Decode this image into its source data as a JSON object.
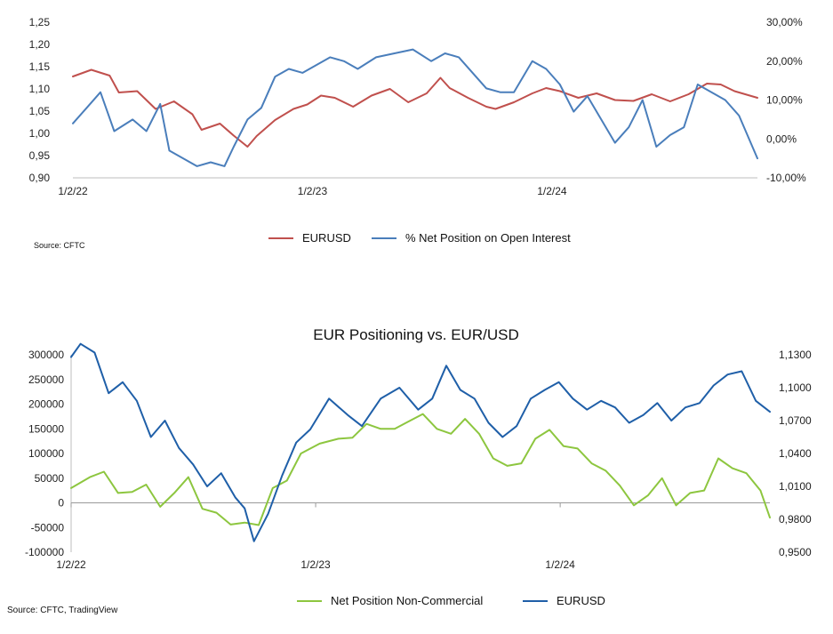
{
  "charts": [
    {
      "id": "top",
      "source": "Source: CFTC",
      "chart_data": {
        "type": "line",
        "title": "",
        "x_tick_labels": [
          "1/2/22",
          "1/2/23",
          "1/2/24"
        ],
        "x_range": [
          "2022-01-02",
          "2024-11-10"
        ],
        "y_left": {
          "range": [
            0.9,
            1.25
          ],
          "ticks": [
            "0,90",
            "0,95",
            "1,00",
            "1,05",
            "1,10",
            "1,15",
            "1,20",
            "1,25"
          ]
        },
        "y_right": {
          "range": [
            -10,
            30
          ],
          "ticks": [
            "-10,00%",
            "0,00%",
            "10,00%",
            "20,00%",
            "30,00%"
          ]
        },
        "legend_position": "bottom",
        "grid": false,
        "series": [
          {
            "name": "EURUSD",
            "axis": "left",
            "color": "#c0504d",
            "points": [
              [
                "2022-01-02",
                1.128
              ],
              [
                "2022-01-30",
                1.143
              ],
              [
                "2022-02-27",
                1.13
              ],
              [
                "2022-03-13",
                1.092
              ],
              [
                "2022-04-10",
                1.095
              ],
              [
                "2022-05-08",
                1.055
              ],
              [
                "2022-06-05",
                1.072
              ],
              [
                "2022-07-03",
                1.043
              ],
              [
                "2022-07-17",
                1.008
              ],
              [
                "2022-08-14",
                1.022
              ],
              [
                "2022-09-04",
                0.995
              ],
              [
                "2022-09-25",
                0.97
              ],
              [
                "2022-10-09",
                0.994
              ],
              [
                "2022-11-06",
                1.03
              ],
              [
                "2022-12-04",
                1.055
              ],
              [
                "2022-12-25",
                1.065
              ],
              [
                "2023-01-15",
                1.085
              ],
              [
                "2023-02-05",
                1.08
              ],
              [
                "2023-03-05",
                1.06
              ],
              [
                "2023-04-02",
                1.085
              ],
              [
                "2023-04-30",
                1.1
              ],
              [
                "2023-05-28",
                1.07
              ],
              [
                "2023-06-25",
                1.09
              ],
              [
                "2023-07-16",
                1.125
              ],
              [
                "2023-07-30",
                1.102
              ],
              [
                "2023-08-27",
                1.08
              ],
              [
                "2023-09-24",
                1.06
              ],
              [
                "2023-10-08",
                1.055
              ],
              [
                "2023-11-05",
                1.07
              ],
              [
                "2023-12-03",
                1.09
              ],
              [
                "2023-12-24",
                1.102
              ],
              [
                "2024-01-14",
                1.095
              ],
              [
                "2024-02-11",
                1.08
              ],
              [
                "2024-03-10",
                1.09
              ],
              [
                "2024-04-07",
                1.075
              ],
              [
                "2024-05-05",
                1.073
              ],
              [
                "2024-06-02",
                1.088
              ],
              [
                "2024-06-30",
                1.072
              ],
              [
                "2024-07-28",
                1.088
              ],
              [
                "2024-08-25",
                1.112
              ],
              [
                "2024-09-15",
                1.11
              ],
              [
                "2024-10-06",
                1.095
              ],
              [
                "2024-11-10",
                1.08
              ]
            ]
          },
          {
            "name": "% Net Position on Open Interest",
            "axis": "right",
            "color": "#4a7ebb",
            "points": [
              [
                "2022-01-02",
                4
              ],
              [
                "2022-01-23",
                8
              ],
              [
                "2022-02-13",
                12
              ],
              [
                "2022-03-06",
                2
              ],
              [
                "2022-04-03",
                5
              ],
              [
                "2022-04-24",
                2
              ],
              [
                "2022-05-15",
                9
              ],
              [
                "2022-05-29",
                -3
              ],
              [
                "2022-06-19",
                -5
              ],
              [
                "2022-07-10",
                -7
              ],
              [
                "2022-07-31",
                -6
              ],
              [
                "2022-08-21",
                -7
              ],
              [
                "2022-09-04",
                -2
              ],
              [
                "2022-09-25",
                5
              ],
              [
                "2022-10-16",
                8
              ],
              [
                "2022-11-06",
                16
              ],
              [
                "2022-11-27",
                18
              ],
              [
                "2022-12-18",
                17
              ],
              [
                "2023-01-08",
                19
              ],
              [
                "2023-01-29",
                21
              ],
              [
                "2023-02-19",
                20
              ],
              [
                "2023-03-12",
                18
              ],
              [
                "2023-04-09",
                21
              ],
              [
                "2023-05-07",
                22
              ],
              [
                "2023-06-04",
                23
              ],
              [
                "2023-07-02",
                20
              ],
              [
                "2023-07-23",
                22
              ],
              [
                "2023-08-13",
                21
              ],
              [
                "2023-09-03",
                17
              ],
              [
                "2023-09-24",
                13
              ],
              [
                "2023-10-15",
                12
              ],
              [
                "2023-11-05",
                12
              ],
              [
                "2023-12-03",
                20
              ],
              [
                "2023-12-24",
                18
              ],
              [
                "2024-01-14",
                14
              ],
              [
                "2024-02-04",
                7
              ],
              [
                "2024-02-25",
                11
              ],
              [
                "2024-03-17",
                5
              ],
              [
                "2024-04-07",
                -1
              ],
              [
                "2024-04-28",
                3
              ],
              [
                "2024-05-19",
                10
              ],
              [
                "2024-06-09",
                -2
              ],
              [
                "2024-06-30",
                1
              ],
              [
                "2024-07-21",
                3
              ],
              [
                "2024-08-11",
                14
              ],
              [
                "2024-09-01",
                12
              ],
              [
                "2024-09-22",
                10
              ],
              [
                "2024-10-13",
                6
              ],
              [
                "2024-11-10",
                -5
              ]
            ]
          }
        ]
      }
    },
    {
      "id": "bottom",
      "source": "Source: CFTC, TradingView",
      "chart_data": {
        "type": "line",
        "title": "EUR Positioning vs. EUR/USD",
        "x_tick_labels": [
          "1/2/22",
          "1/2/23",
          "1/2/24"
        ],
        "x_range": [
          "2022-01-02",
          "2024-11-10"
        ],
        "y_left": {
          "range": [
            -100000,
            300000
          ],
          "ticks": [
            "-100000",
            "-50000",
            "0",
            "50000",
            "100000",
            "150000",
            "200000",
            "250000",
            "300000"
          ]
        },
        "y_right": {
          "range": [
            0.95,
            1.13
          ],
          "ticks": [
            "0,9500",
            "0,9800",
            "1,0100",
            "1,0400",
            "1,0700",
            "1,1000",
            "1,1300"
          ]
        },
        "legend_position": "bottom",
        "grid": false,
        "series": [
          {
            "name": "Net Position Non-Commercial",
            "axis": "left",
            "color": "#8dc63f",
            "points": [
              [
                "2022-01-02",
                30000
              ],
              [
                "2022-01-30",
                52000
              ],
              [
                "2022-02-20",
                63000
              ],
              [
                "2022-03-13",
                20000
              ],
              [
                "2022-04-03",
                22000
              ],
              [
                "2022-04-24",
                37000
              ],
              [
                "2022-05-15",
                -8000
              ],
              [
                "2022-06-05",
                20000
              ],
              [
                "2022-06-26",
                52000
              ],
              [
                "2022-07-17",
                -12000
              ],
              [
                "2022-08-07",
                -20000
              ],
              [
                "2022-08-28",
                -44000
              ],
              [
                "2022-09-18",
                -40000
              ],
              [
                "2022-10-09",
                -45000
              ],
              [
                "2022-10-30",
                30000
              ],
              [
                "2022-11-20",
                45000
              ],
              [
                "2022-12-11",
                100000
              ],
              [
                "2023-01-08",
                120000
              ],
              [
                "2023-02-05",
                130000
              ],
              [
                "2023-02-26",
                132000
              ],
              [
                "2023-03-19",
                160000
              ],
              [
                "2023-04-09",
                150000
              ],
              [
                "2023-04-30",
                150000
              ],
              [
                "2023-05-21",
                165000
              ],
              [
                "2023-06-11",
                180000
              ],
              [
                "2023-07-02",
                150000
              ],
              [
                "2023-07-23",
                140000
              ],
              [
                "2023-08-13",
                170000
              ],
              [
                "2023-09-03",
                140000
              ],
              [
                "2023-09-24",
                90000
              ],
              [
                "2023-10-15",
                75000
              ],
              [
                "2023-11-05",
                80000
              ],
              [
                "2023-11-26",
                130000
              ],
              [
                "2023-12-17",
                148000
              ],
              [
                "2024-01-07",
                115000
              ],
              [
                "2024-01-28",
                110000
              ],
              [
                "2024-02-18",
                80000
              ],
              [
                "2024-03-10",
                65000
              ],
              [
                "2024-03-31",
                35000
              ],
              [
                "2024-04-21",
                -5000
              ],
              [
                "2024-05-12",
                15000
              ],
              [
                "2024-06-02",
                50000
              ],
              [
                "2024-06-23",
                -5000
              ],
              [
                "2024-07-14",
                20000
              ],
              [
                "2024-08-04",
                25000
              ],
              [
                "2024-08-25",
                90000
              ],
              [
                "2024-09-15",
                70000
              ],
              [
                "2024-10-06",
                60000
              ],
              [
                "2024-10-27",
                25000
              ],
              [
                "2024-11-10",
                -30000
              ]
            ]
          },
          {
            "name": "EURUSD",
            "axis": "right",
            "color": "#1f5fa8",
            "points": [
              [
                "2022-01-02",
                1.128
              ],
              [
                "2022-01-16",
                1.14
              ],
              [
                "2022-02-06",
                1.132
              ],
              [
                "2022-02-27",
                1.095
              ],
              [
                "2022-03-20",
                1.105
              ],
              [
                "2022-04-10",
                1.088
              ],
              [
                "2022-05-01",
                1.055
              ],
              [
                "2022-05-22",
                1.07
              ],
              [
                "2022-06-12",
                1.045
              ],
              [
                "2022-07-03",
                1.03
              ],
              [
                "2022-07-24",
                1.01
              ],
              [
                "2022-08-14",
                1.022
              ],
              [
                "2022-09-04",
                1.0
              ],
              [
                "2022-09-18",
                0.99
              ],
              [
                "2022-10-02",
                0.96
              ],
              [
                "2022-10-23",
                0.985
              ],
              [
                "2022-11-13",
                1.02
              ],
              [
                "2022-12-04",
                1.05
              ],
              [
                "2022-12-25",
                1.062
              ],
              [
                "2023-01-22",
                1.09
              ],
              [
                "2023-02-19",
                1.075
              ],
              [
                "2023-03-12",
                1.065
              ],
              [
                "2023-04-09",
                1.09
              ],
              [
                "2023-05-07",
                1.1
              ],
              [
                "2023-06-04",
                1.08
              ],
              [
                "2023-06-25",
                1.09
              ],
              [
                "2023-07-16",
                1.12
              ],
              [
                "2023-08-06",
                1.098
              ],
              [
                "2023-08-27",
                1.09
              ],
              [
                "2023-09-17",
                1.068
              ],
              [
                "2023-10-08",
                1.055
              ],
              [
                "2023-10-29",
                1.065
              ],
              [
                "2023-11-19",
                1.09
              ],
              [
                "2023-12-10",
                1.098
              ],
              [
                "2023-12-31",
                1.105
              ],
              [
                "2024-01-21",
                1.09
              ],
              [
                "2024-02-11",
                1.08
              ],
              [
                "2024-03-03",
                1.088
              ],
              [
                "2024-03-24",
                1.082
              ],
              [
                "2024-04-14",
                1.068
              ],
              [
                "2024-05-05",
                1.075
              ],
              [
                "2024-05-26",
                1.086
              ],
              [
                "2024-06-16",
                1.07
              ],
              [
                "2024-07-07",
                1.082
              ],
              [
                "2024-07-28",
                1.086
              ],
              [
                "2024-08-18",
                1.102
              ],
              [
                "2024-09-08",
                1.112
              ],
              [
                "2024-09-29",
                1.115
              ],
              [
                "2024-10-20",
                1.088
              ],
              [
                "2024-11-10",
                1.078
              ]
            ]
          }
        ]
      }
    }
  ]
}
